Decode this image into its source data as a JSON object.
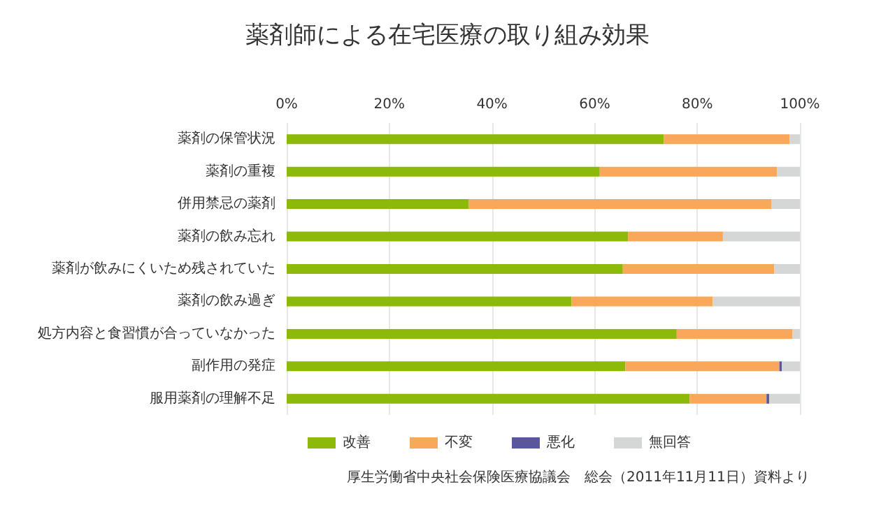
{
  "chart_data": {
    "type": "bar",
    "title": "薬剤師による在宅医療の取り組み効果",
    "orientation": "horizontal",
    "stacked": true,
    "categories": [
      "薬剤の保管状況",
      "薬剤の重複",
      "併用禁忌の薬剤",
      "薬剤の飲み忘れ",
      "薬剤が飲みにくいため残されていた",
      "薬剤の飲み過ぎ",
      "処方内容と食習慣が合っていなかった",
      "副作用の発症",
      "服用薬剤の理解不足"
    ],
    "series": [
      {
        "name": "改善",
        "color": "#8db90b",
        "values": [
          73.5,
          61,
          35.5,
          66.5,
          65.5,
          55.5,
          76,
          66,
          78.5
        ]
      },
      {
        "name": "不変",
        "color": "#f9a75a",
        "values": [
          24.5,
          34.5,
          59,
          18.5,
          29.5,
          27.5,
          22.5,
          30,
          15
        ]
      },
      {
        "name": "悪化",
        "color": "#5a559f",
        "values": [
          0,
          0,
          0,
          0,
          0,
          0,
          0,
          0.5,
          0.5
        ]
      },
      {
        "name": "無回答",
        "color": "#d5d6d6",
        "values": [
          2,
          4.5,
          5.5,
          15,
          5,
          17,
          1.5,
          3.5,
          6
        ]
      }
    ],
    "xlim": [
      0,
      100
    ],
    "xticks": [
      {
        "value": 0,
        "label": "0%"
      },
      {
        "value": 20,
        "label": "20%"
      },
      {
        "value": 40,
        "label": "40%"
      },
      {
        "value": 60,
        "label": "60%"
      },
      {
        "value": 80,
        "label": "80%"
      },
      {
        "value": 100,
        "label": "100%"
      }
    ],
    "grid": "x",
    "legend": "bottom",
    "annotations": [
      "厚生労働省中央社会保険医療協議会　総会（2011年11月11日）資料より"
    ]
  }
}
